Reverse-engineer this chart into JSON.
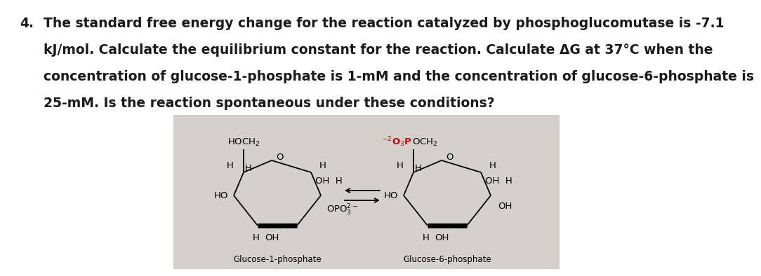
{
  "question_number": "4.",
  "line1": "The standard free energy change for the reaction catalyzed by phosphoglucomutase is -7.1",
  "line2": "kJ/mol. Calculate the equilibrium constant for the reaction. Calculate ΔG at 37°C when the",
  "line3": "concentration of glucose-1-phosphate is 1-mM and the concentration of glucose-6-phosphate is",
  "line4": "25-mM. Is the reaction spontaneous under these conditions?",
  "bg_color": "#d4d0cb",
  "fig_bg": "#ffffff",
  "text_color": "#1a1a1a",
  "red_color": "#cc0000",
  "label_g1p": "Glucose-1-phosphate",
  "label_g6p": "Glucose-6-phosphate"
}
